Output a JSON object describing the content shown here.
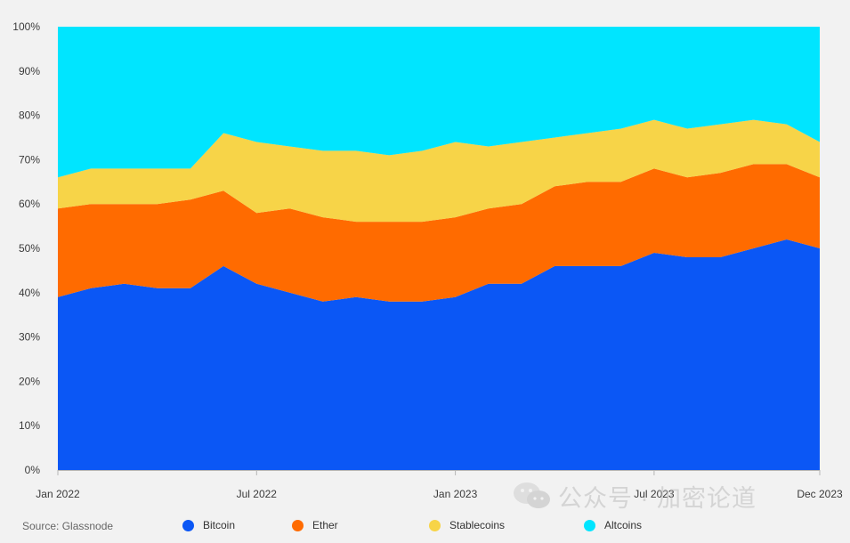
{
  "chart_data": {
    "type": "area",
    "stacked": true,
    "normalized": true,
    "x_ticks": [
      "Jan 2022",
      "Jul 2022",
      "Jan 2023",
      "Jul 2023",
      "Dec 2023"
    ],
    "y_ticks": [
      "0%",
      "10%",
      "20%",
      "30%",
      "40%",
      "50%",
      "60%",
      "70%",
      "80%",
      "90%",
      "100%"
    ],
    "ylim": [
      0,
      100
    ],
    "x": [
      "2022-01",
      "2022-02",
      "2022-03",
      "2022-04",
      "2022-05",
      "2022-06",
      "2022-07",
      "2022-08",
      "2022-09",
      "2022-10",
      "2022-11",
      "2022-12",
      "2023-01",
      "2023-02",
      "2023-03",
      "2023-04",
      "2023-05",
      "2023-06",
      "2023-07",
      "2023-08",
      "2023-09",
      "2023-10",
      "2023-11",
      "2023-12"
    ],
    "series": [
      {
        "name": "Bitcoin",
        "color": "#0b57f5",
        "values": [
          39,
          41,
          42,
          41,
          41,
          46,
          42,
          40,
          38,
          39,
          38,
          38,
          39,
          42,
          42,
          46,
          46,
          46,
          49,
          48,
          48,
          50,
          52,
          50
        ]
      },
      {
        "name": "Ether",
        "color": "#ff6b00",
        "values": [
          20,
          19,
          18,
          19,
          20,
          17,
          16,
          19,
          19,
          17,
          18,
          18,
          18,
          17,
          18,
          18,
          19,
          19,
          19,
          18,
          19,
          19,
          17,
          16
        ]
      },
      {
        "name": "Stablecoins",
        "color": "#f7d448",
        "values": [
          7,
          8,
          8,
          8,
          7,
          13,
          16,
          14,
          15,
          16,
          15,
          16,
          17,
          14,
          14,
          11,
          11,
          12,
          11,
          11,
          11,
          10,
          9,
          8
        ]
      },
      {
        "name": "Altcoins",
        "color": "#00e5ff",
        "values": [
          34,
          32,
          32,
          32,
          32,
          24,
          26,
          27,
          28,
          28,
          29,
          28,
          26,
          27,
          26,
          25,
          24,
          23,
          21,
          23,
          22,
          21,
          22,
          26
        ]
      }
    ],
    "source": "Source: Glassnode",
    "legend_position": "bottom"
  },
  "watermark": {
    "text": "公众号 · 加密论道",
    "icon": "wechat-icon"
  }
}
